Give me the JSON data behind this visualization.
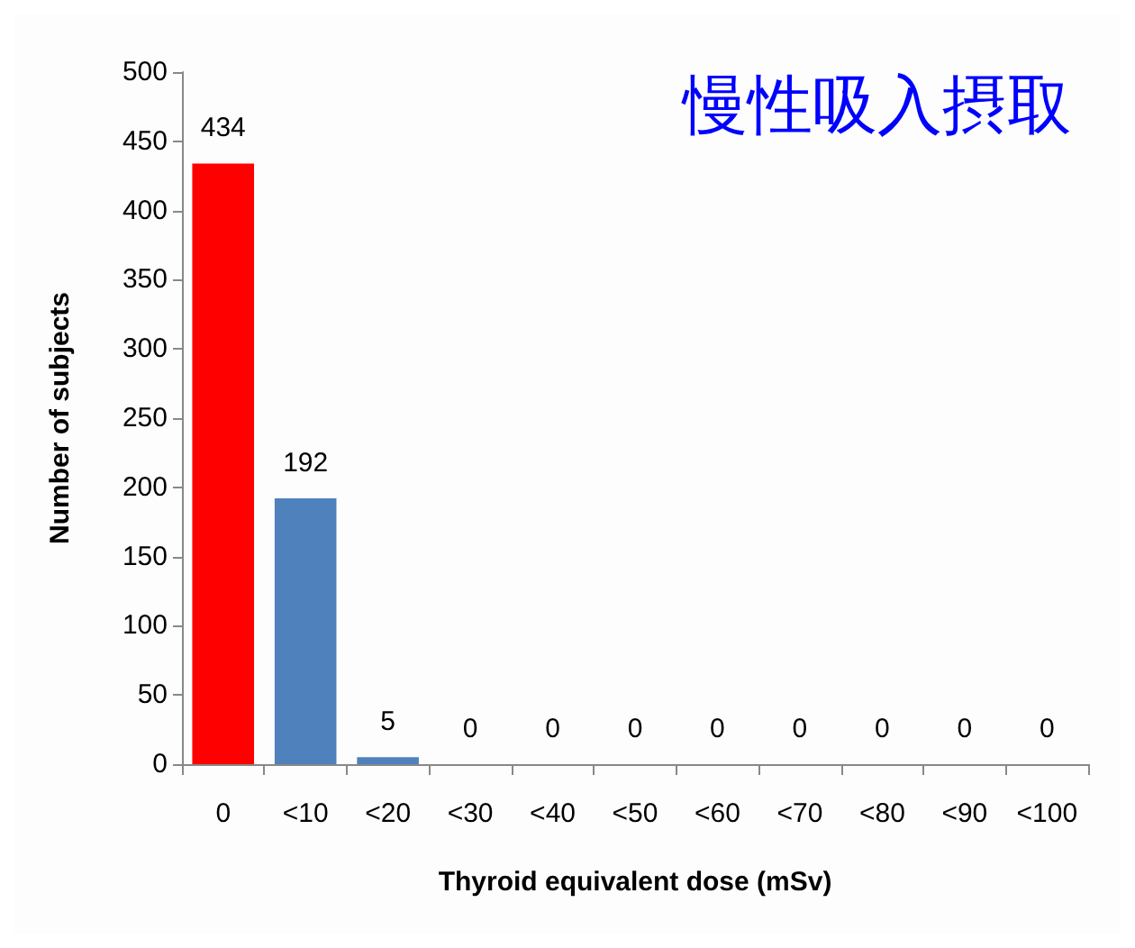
{
  "chart_data": {
    "type": "bar",
    "title": "慢性吸入摂取",
    "xlabel": "Thyroid equivalent dose (mSv)",
    "ylabel": "Number of subjects",
    "categories": [
      "0",
      "<10",
      "<20",
      "<30",
      "<40",
      "<50",
      "<60",
      "<70",
      "<80",
      "<90",
      "<100"
    ],
    "values": [
      434,
      192,
      5,
      0,
      0,
      0,
      0,
      0,
      0,
      0,
      0
    ],
    "colors": [
      "#ff0000",
      "#4f81bd",
      "#4f81bd",
      "#4f81bd",
      "#4f81bd",
      "#4f81bd",
      "#4f81bd",
      "#4f81bd",
      "#4f81bd",
      "#4f81bd",
      "#4f81bd"
    ],
    "ylim": [
      0,
      500
    ],
    "yticks": [
      0,
      50,
      100,
      150,
      200,
      250,
      300,
      350,
      400,
      450,
      500
    ],
    "data_labels": true
  }
}
